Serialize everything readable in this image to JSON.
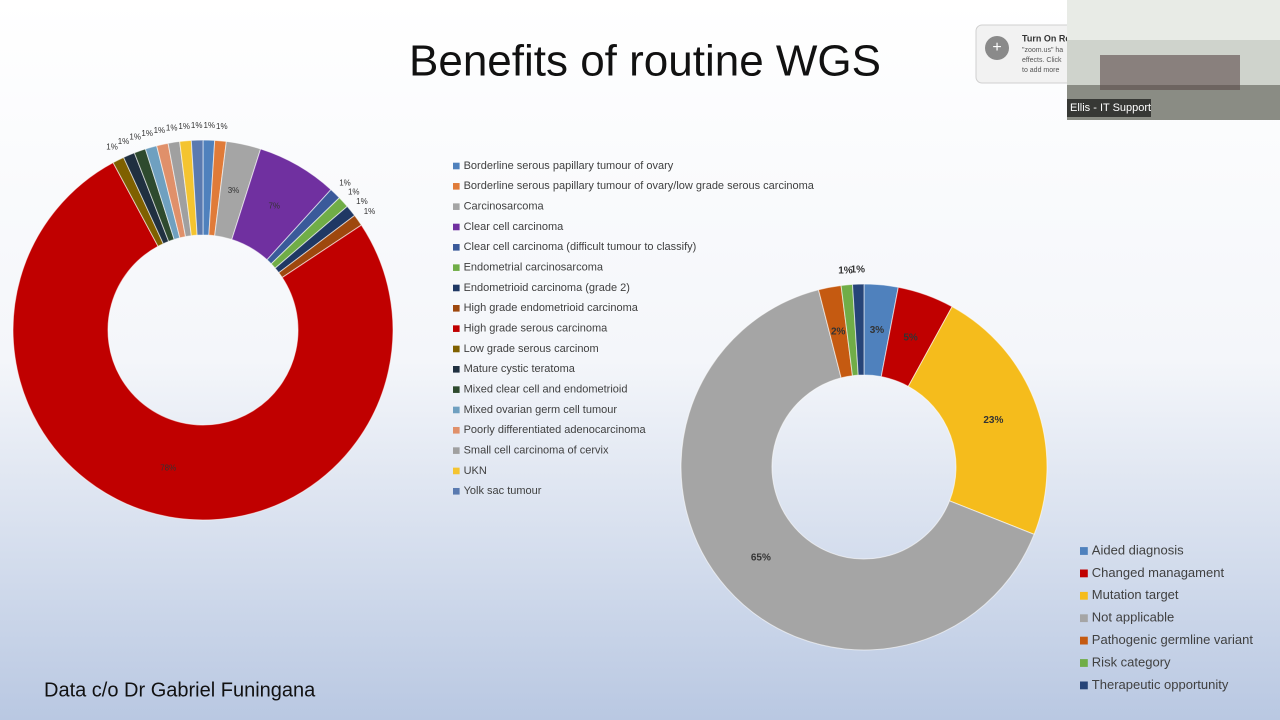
{
  "title": "Benefits of routine WGS",
  "footer": "Data c/o Dr Gabriel Funingana",
  "zoom_notice": {
    "heading": "Turn On Re",
    "lines": [
      "\"zoom.us\" ha",
      "effects. Click",
      "to add more"
    ]
  },
  "video_tile": {
    "name": "Ellis - IT Support"
  },
  "chart_data": [
    {
      "type": "donut",
      "legend": "right",
      "categories": [
        "Borderline serous papillary tumour of ovary",
        "Borderline serous papillary tumour of ovary/low grade serous carcinoma",
        "Carcinosarcoma",
        "Clear cell carcinoma",
        "Clear cell carcinoma (difficult tumour to classify)",
        "Endometrial carcinosarcoma",
        "Endometrioid carcinoma (grade 2)",
        "High grade endometrioid carcinoma",
        "High grade serous carcinoma",
        "Low grade serous carcinom",
        "Mature cystic teratoma",
        "Mixed clear cell and endometrioid",
        "Mixed ovarian germ cell tumour",
        "Poorly differentiated adenocarcinoma",
        "Small cell carcinoma of cervix",
        "UKN",
        "Yolk sac tumour"
      ],
      "values": [
        1,
        1,
        3,
        7,
        1,
        1,
        1,
        1,
        78,
        1,
        1,
        1,
        1,
        1,
        1,
        1,
        1
      ],
      "value_labels": [
        "1%",
        "1%",
        "3%",
        "7%",
        "1%",
        "1%",
        "1%",
        "1%",
        "78%",
        "1%",
        "1%",
        "1%",
        "1%",
        "1%",
        "1%",
        "1%",
        "1%"
      ],
      "colors": [
        "#4f81bd",
        "#e07b39",
        "#a5a5a5",
        "#7030a0",
        "#3a5a9a",
        "#70ad47",
        "#1f3864",
        "#9e480e",
        "#c00000",
        "#7f6000",
        "#203040",
        "#2e4a2e",
        "#6fa0c0",
        "#e0906a",
        "#a0a0a0",
        "#f4c430",
        "#5a7ab0"
      ]
    },
    {
      "type": "donut",
      "legend": "bottom-right",
      "categories": [
        "Aided diagnosis",
        "Changed managament",
        "Mutation target",
        "Not applicable",
        "Pathogenic germline variant",
        "Risk category",
        "Therapeutic opportunity"
      ],
      "values": [
        3,
        5,
        23,
        65,
        2,
        1,
        1
      ],
      "value_labels": [
        "3%",
        "5%",
        "23%",
        "65%",
        "2%",
        "1%",
        "1%"
      ],
      "colors": [
        "#4f81bd",
        "#c00000",
        "#f5bc1c",
        "#a5a5a5",
        "#c55a11",
        "#70ad47",
        "#264478"
      ]
    }
  ]
}
